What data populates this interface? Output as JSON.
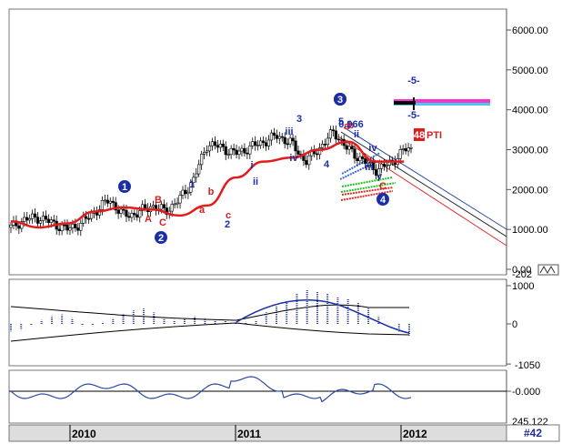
{
  "colors": {
    "price_bars": "#000000",
    "moving_average": "#e21b1b",
    "wave_label_blue": "#1b2ea8",
    "wave_label_red": "#d42020",
    "channel_blue": "#2b4aa8",
    "channel_red": "#e03030",
    "macd_histogram": "#2b3fa8",
    "oscillator_line": "#2b4aa8",
    "fan_blue": "#3a6ad8",
    "fan_green": "#22c022",
    "fan_red": "#e02a2a",
    "target_pink": "#ff33cc",
    "target_cyan": "#44ccee",
    "footer_accent": "#1d2d99",
    "footer_bg": "#dddddd"
  },
  "chart_data": [
    {
      "type": "line",
      "ylim": [
        0,
        6400
      ],
      "y_ticks": [
        "6000.00",
        "5000.00",
        "4000.00",
        "3000.00",
        "2000.00",
        "1000.00",
        "0.00"
      ],
      "bottom_value": "-202",
      "price_series": {
        "x": [
          "2009-09",
          "2009-10",
          "2009-11",
          "2009-12",
          "2010-01",
          "2010-02",
          "2010-03",
          "2010-04",
          "2010-05",
          "2010-06",
          "2010-07",
          "2010-08",
          "2010-09",
          "2010-10",
          "2010-11",
          "2010-12",
          "2011-01",
          "2011-02",
          "2011-03",
          "2011-04",
          "2011-05",
          "2011-06",
          "2011-07",
          "2011-08",
          "2011-09",
          "2011-10",
          "2011-11",
          "2011-12",
          "2012-01"
        ],
        "close": [
          1050,
          1250,
          1300,
          1150,
          1000,
          1150,
          1450,
          1750,
          1350,
          1400,
          1600,
          1450,
          1750,
          2250,
          3150,
          3050,
          2900,
          3050,
          3200,
          3350,
          3150,
          2700,
          3050,
          3450,
          3000,
          2750,
          2500,
          2650,
          3000
        ]
      },
      "moving_average": {
        "x": [
          "2009-09",
          "2009-11",
          "2010-01",
          "2010-03",
          "2010-05",
          "2010-07",
          "2010-09",
          "2010-11",
          "2011-01",
          "2011-03",
          "2011-05",
          "2011-07",
          "2011-09",
          "2011-11",
          "2012-01"
        ],
        "values": [
          1200,
          1050,
          1150,
          1450,
          1550,
          1500,
          1350,
          1600,
          2300,
          2700,
          2800,
          3000,
          3200,
          2700,
          2700
        ]
      },
      "wave_labels_blue": [
        "1",
        "2",
        "1",
        "2",
        "i",
        "ii",
        "iii",
        "3",
        "iv",
        "4",
        "3",
        "5",
        "ii",
        "iv",
        "iii",
        "v",
        "4",
        "2"
      ],
      "wave_labels_red": [
        "A",
        "B",
        "C",
        "a",
        "b",
        "c",
        "a",
        "b",
        "C"
      ],
      "annotation_text": "0.966",
      "target_labels": [
        "-5-",
        "-5-"
      ],
      "tag_number": "48",
      "tag_text": "PTI"
    },
    {
      "type": "bar",
      "ylim": [
        -1050,
        1000
      ],
      "y_ticks": [
        "1000",
        "0",
        "-1050"
      ],
      "values": [
        -200,
        -150,
        -50,
        100,
        200,
        250,
        150,
        -50,
        -50,
        50,
        150,
        250,
        350,
        400,
        300,
        150,
        100,
        150,
        200,
        150,
        100,
        100,
        50,
        50,
        100,
        300,
        450,
        600,
        800,
        900,
        850,
        800,
        700,
        650,
        550,
        400,
        200,
        0,
        -200,
        -300
      ]
    },
    {
      "type": "line",
      "y_ticks": [
        "-0.000",
        "245.122"
      ]
    }
  ],
  "timeline": {
    "years": [
      "2010",
      "2011",
      "2012"
    ],
    "page_tag": "#42"
  }
}
